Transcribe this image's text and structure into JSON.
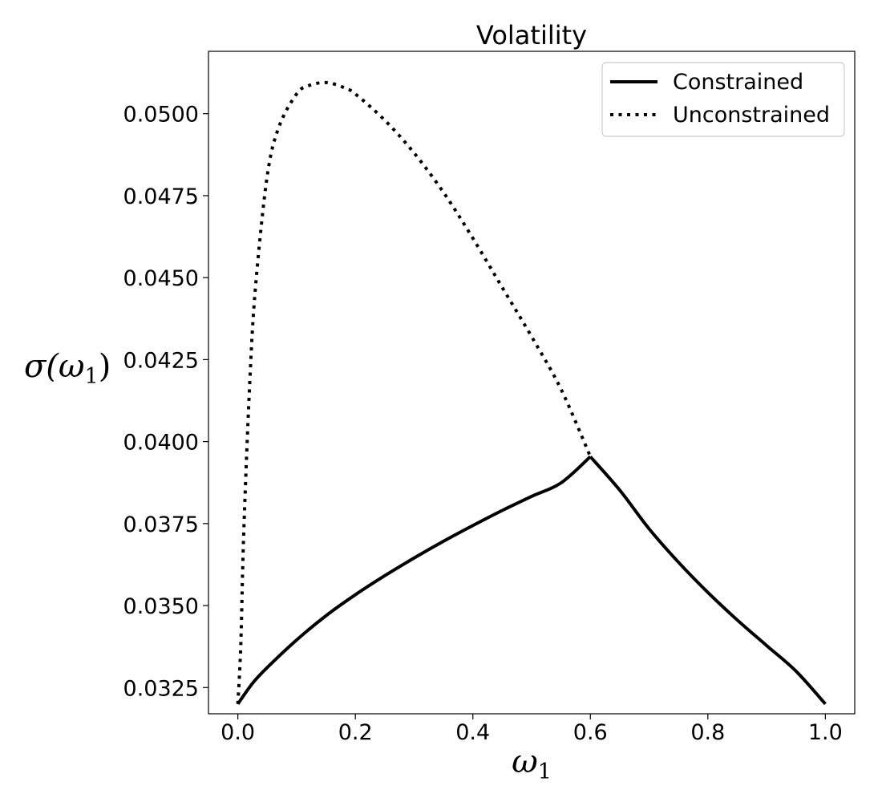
{
  "chart_data": {
    "type": "line",
    "title": "Volatility",
    "xlabel_base": "ω",
    "xlabel_sub": "1",
    "ylabel_prefix": "σ(ω",
    "ylabel_sub": "1",
    "ylabel_suffix": ")",
    "xlim": [
      -0.05,
      1.05
    ],
    "ylim": [
      0.0317,
      0.0519
    ],
    "xticks": [
      0.0,
      0.2,
      0.4,
      0.6,
      0.8,
      1.0
    ],
    "xtick_labels": [
      "0.0",
      "0.2",
      "0.4",
      "0.6",
      "0.8",
      "1.0"
    ],
    "yticks": [
      0.0325,
      0.035,
      0.0375,
      0.04,
      0.0425,
      0.045,
      0.0475,
      0.05
    ],
    "ytick_labels": [
      "0.0325",
      "0.0350",
      "0.0375",
      "0.0400",
      "0.0425",
      "0.0450",
      "0.0475",
      "0.0500"
    ],
    "grid": false,
    "legend_position": "top-right",
    "series": [
      {
        "name": "Constrained",
        "style": "solid",
        "color": "#000000",
        "x": [
          0.0,
          0.025,
          0.05,
          0.1,
          0.15,
          0.2,
          0.25,
          0.3,
          0.35,
          0.4,
          0.45,
          0.5,
          0.55,
          0.6,
          0.65,
          0.7,
          0.75,
          0.8,
          0.85,
          0.9,
          0.95,
          1.0
        ],
        "y": [
          0.032,
          0.03263,
          0.03311,
          0.03395,
          0.03469,
          0.03533,
          0.03591,
          0.03645,
          0.03696,
          0.03744,
          0.0379,
          0.03833,
          0.03874,
          0.03954,
          0.03852,
          0.03734,
          0.03632,
          0.0354,
          0.03456,
          0.03378,
          0.033,
          0.032
        ]
      },
      {
        "name": "Unconstrained",
        "style": "dotted",
        "color": "#000000",
        "x": [
          0.0,
          0.005,
          0.01,
          0.02,
          0.03,
          0.05,
          0.07,
          0.1,
          0.12,
          0.15,
          0.18,
          0.2,
          0.25,
          0.3,
          0.35,
          0.4,
          0.45,
          0.5,
          0.55,
          0.6
        ],
        "y": [
          0.032,
          0.0338,
          0.0372,
          0.0417,
          0.0447,
          0.0481,
          0.0496,
          0.0506,
          0.05085,
          0.05095,
          0.0508,
          0.0506,
          0.0498,
          0.0488,
          0.0476,
          0.0462,
          0.0447,
          0.0432,
          0.0416,
          0.03954
        ]
      }
    ]
  }
}
